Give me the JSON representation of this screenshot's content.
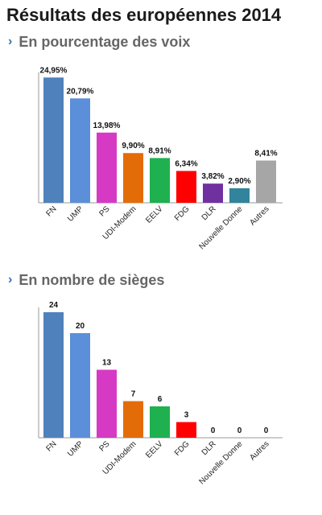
{
  "title": "Résultats des européennes 2014",
  "sections": [
    {
      "label": "En pourcentage des voix"
    },
    {
      "label": "En nombre de sièges"
    }
  ],
  "colors": {
    "FN": "#4f81bd",
    "UMP": "#5b8fd9",
    "PS": "#d63ac4",
    "UDI-Modem": "#e36c09",
    "EELV": "#1fb050",
    "FDG": "#ff0000",
    "DLR": "#7030a0",
    "Nouvelle Donne": "#31849b",
    "Autres": "#a6a6a6"
  },
  "chart_data": [
    {
      "type": "bar",
      "categories": [
        "FN",
        "UMP",
        "PS",
        "UDI-Modem",
        "EELV",
        "FDG",
        "DLR",
        "Nouvelle Donne",
        "Autres"
      ],
      "values": [
        24.95,
        20.79,
        13.98,
        9.9,
        8.91,
        6.34,
        3.82,
        2.9,
        8.41
      ],
      "value_labels": [
        "24,95%",
        "20,79%",
        "13,98%",
        "9,90%",
        "8,91%",
        "6,34%",
        "3,82%",
        "2,90%",
        "8,41%"
      ],
      "ylim": [
        0,
        25
      ],
      "grid": false
    },
    {
      "type": "bar",
      "categories": [
        "FN",
        "UMP",
        "PS",
        "UDI-Modem",
        "EELV",
        "FDG",
        "DLR",
        "Nouvelle Donne",
        "Autres"
      ],
      "values": [
        24,
        20,
        13,
        7,
        6,
        3,
        0,
        0,
        0
      ],
      "value_labels": [
        "24",
        "20",
        "13",
        "7",
        "6",
        "3",
        "0",
        "0",
        "0"
      ],
      "ylim": [
        0,
        24
      ],
      "grid": false
    }
  ]
}
